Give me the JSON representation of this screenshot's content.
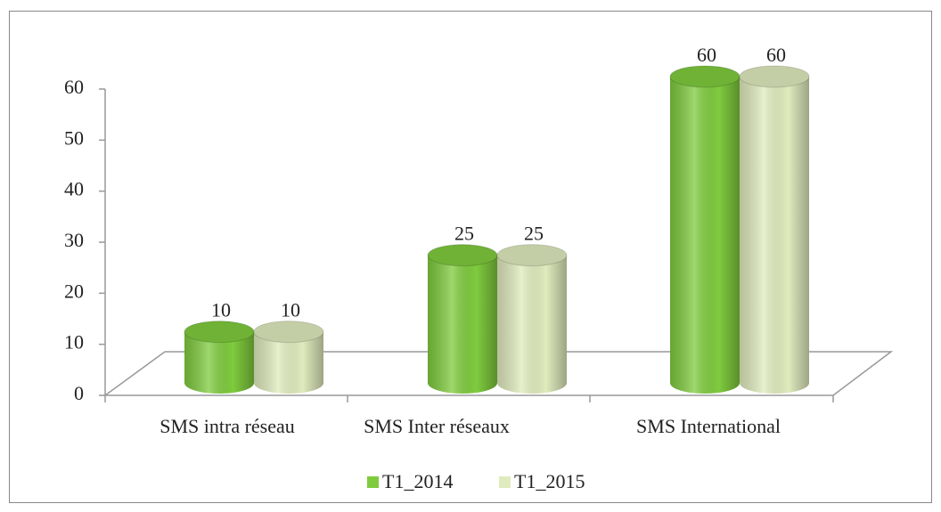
{
  "chart_data": {
    "type": "bar3d",
    "categories": [
      "SMS intra réseau",
      "SMS Inter réseaux",
      "SMS International"
    ],
    "series": [
      {
        "name": "T1_2014",
        "color": "#7fcb3e",
        "values": [
          10,
          25,
          60
        ]
      },
      {
        "name": "T1_2015",
        "color": "#e0ebbd",
        "values": [
          10,
          25,
          60
        ]
      }
    ],
    "ylim": [
      0,
      60
    ],
    "yticks": [
      0,
      10,
      20,
      30,
      40,
      50,
      60
    ],
    "legend": "bottom"
  }
}
